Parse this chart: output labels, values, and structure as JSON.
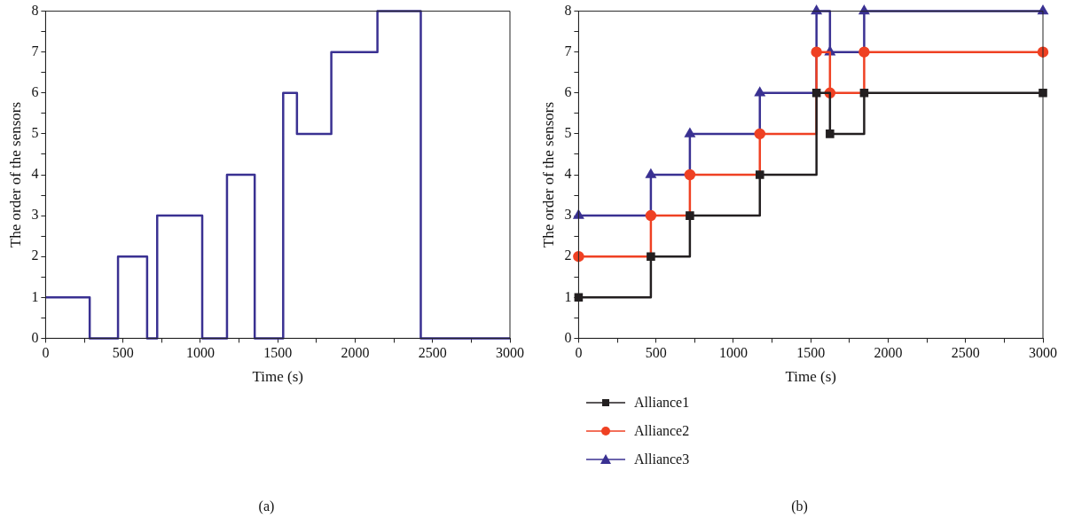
{
  "chart_data": [
    {
      "type": "step",
      "xlabel": "Time (s)",
      "ylabel": "The order of the sensors",
      "annotations": [
        "(a)"
      ],
      "x": [
        0,
        285,
        468,
        656,
        721,
        1012,
        1172,
        1351,
        1535,
        1624,
        1846,
        2144,
        2424,
        3000
      ],
      "series": [
        {
          "color": "#3a3192",
          "values": [
            1,
            0,
            2,
            0,
            3,
            0,
            4,
            0,
            6,
            5,
            7,
            8,
            0,
            0
          ]
        }
      ],
      "xlim": [
        0,
        3000
      ],
      "ylim": [
        0,
        8
      ],
      "xticks": [
        0,
        {
          "value": 250,
          "label": null
        },
        500,
        {
          "value": 750,
          "label": null
        },
        1000,
        {
          "value": 1250,
          "label": null
        },
        1500,
        {
          "value": 1750,
          "label": null
        },
        2000,
        {
          "value": 2250,
          "label": null
        },
        2500,
        {
          "value": 2750,
          "label": null
        },
        3000
      ],
      "yticks": [
        0,
        {
          "value": 0.5,
          "label": null
        },
        1,
        {
          "value": 1.5,
          "label": null
        },
        2,
        {
          "value": 2.5,
          "label": null
        },
        3,
        {
          "value": 3.5,
          "label": null
        },
        4,
        {
          "value": 4.5,
          "label": null
        },
        5,
        {
          "value": 5.5,
          "label": null
        },
        6,
        {
          "value": 6.5,
          "label": null
        },
        7,
        {
          "value": 7.5,
          "label": null
        },
        8
      ],
      "grid": false,
      "legend": false
    },
    {
      "type": "step",
      "xlabel": "Time (s)",
      "ylabel": "The order of the sensors",
      "annotations": [
        "(b)"
      ],
      "x": [
        0,
        467,
        719,
        1171,
        1537,
        1624,
        1845,
        3000
      ],
      "series": [
        {
          "name": "Alliance1",
          "color": "#231f20",
          "marker": "square",
          "values": [
            1,
            2,
            3,
            4,
            6,
            5,
            6,
            6
          ]
        },
        {
          "name": "Alliance2",
          "color": "#ef4123",
          "marker": "circle",
          "values": [
            2,
            3,
            4,
            5,
            7,
            6,
            7,
            7
          ]
        },
        {
          "name": "Alliance3",
          "color": "#3a3192",
          "marker": "triangle",
          "values": [
            3,
            4,
            5,
            6,
            8,
            7,
            8,
            8
          ]
        }
      ],
      "xlim": [
        0,
        3000
      ],
      "ylim": [
        0,
        8
      ],
      "xticks": [
        0,
        {
          "value": 250,
          "label": null
        },
        500,
        {
          "value": 750,
          "label": null
        },
        1000,
        {
          "value": 1250,
          "label": null
        },
        1500,
        {
          "value": 1750,
          "label": null
        },
        2000,
        {
          "value": 2250,
          "label": null
        },
        2500,
        {
          "value": 2750,
          "label": null
        },
        3000
      ],
      "yticks": [
        0,
        {
          "value": 0.5,
          "label": null
        },
        1,
        {
          "value": 1.5,
          "label": null
        },
        2,
        {
          "value": 2.5,
          "label": null
        },
        3,
        {
          "value": 3.5,
          "label": null
        },
        4,
        {
          "value": 4.5,
          "label": null
        },
        5,
        {
          "value": 5.5,
          "label": null
        },
        6,
        {
          "value": 6.5,
          "label": null
        },
        7,
        {
          "value": 7.5,
          "label": null
        },
        8
      ],
      "grid": false,
      "legend": "bottom"
    }
  ]
}
